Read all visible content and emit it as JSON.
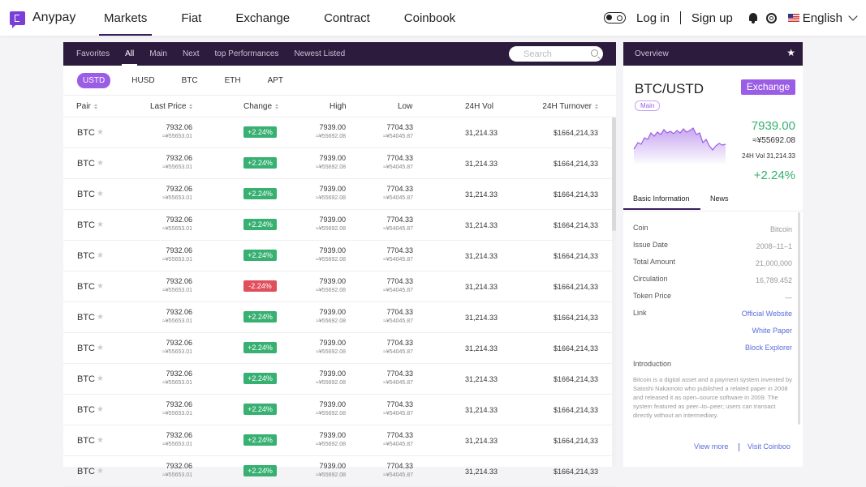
{
  "app": {
    "name": "Anypay",
    "brand_color": "#7b3fd9",
    "accent_color": "#9b5de5",
    "dark_bar_color": "#2d1b3d",
    "up_color": "#37b071",
    "down_color": "#e0505c"
  },
  "nav": {
    "items": [
      "Markets",
      "Fiat",
      "Exchange",
      "Contract",
      "Coinbook"
    ],
    "active": "Markets",
    "login": "Log in",
    "signup": "Sign up",
    "language": "English"
  },
  "market": {
    "tabs": [
      "Favorites",
      "All",
      "Main",
      "Next",
      "top Performances",
      "Newest Listed"
    ],
    "active_tab": "All",
    "search_placeholder": "Search",
    "quote_tabs": [
      "USTD",
      "HUSD",
      "BTC",
      "ETH",
      "APT"
    ],
    "active_quote": "USTD",
    "columns": [
      "Pair",
      "Last Price",
      "Change",
      "High",
      "Low",
      "24H Vol",
      "24H Turnover"
    ],
    "rows": [
      {
        "pair": "BTC",
        "last": "7932.06",
        "last_cny": "≈¥55653.01",
        "change": "+2.24%",
        "dir": "up",
        "high": "7939.00",
        "high_cny": "≈¥55692.08",
        "low": "7704.33",
        "low_cny": "≈¥54045.87",
        "vol": "31,214.33",
        "turnover": "$1664,214,33"
      },
      {
        "pair": "BTC",
        "last": "7932.06",
        "last_cny": "≈¥55653.01",
        "change": "+2.24%",
        "dir": "up",
        "high": "7939.00",
        "high_cny": "≈¥55692.08",
        "low": "7704.33",
        "low_cny": "≈¥54045.87",
        "vol": "31,214.33",
        "turnover": "$1664,214,33"
      },
      {
        "pair": "BTC",
        "last": "7932.06",
        "last_cny": "≈¥55653.01",
        "change": "+2.24%",
        "dir": "up",
        "high": "7939.00",
        "high_cny": "≈¥55692.08",
        "low": "7704.33",
        "low_cny": "≈¥54045.87",
        "vol": "31,214.33",
        "turnover": "$1664,214,33"
      },
      {
        "pair": "BTC",
        "last": "7932.06",
        "last_cny": "≈¥55653.01",
        "change": "+2.24%",
        "dir": "up",
        "high": "7939.00",
        "high_cny": "≈¥55692.08",
        "low": "7704.33",
        "low_cny": "≈¥54045.87",
        "vol": "31,214.33",
        "turnover": "$1664,214,33"
      },
      {
        "pair": "BTC",
        "last": "7932.06",
        "last_cny": "≈¥55653.01",
        "change": "+2.24%",
        "dir": "up",
        "high": "7939.00",
        "high_cny": "≈¥55692.08",
        "low": "7704.33",
        "low_cny": "≈¥54045.87",
        "vol": "31,214.33",
        "turnover": "$1664,214,33"
      },
      {
        "pair": "BTC",
        "last": "7932.06",
        "last_cny": "≈¥55653.01",
        "change": "-2.24%",
        "dir": "down",
        "high": "7939.00",
        "high_cny": "≈¥55692.08",
        "low": "7704.33",
        "low_cny": "≈¥54045.87",
        "vol": "31,214.33",
        "turnover": "$1664,214,33"
      },
      {
        "pair": "BTC",
        "last": "7932.06",
        "last_cny": "≈¥55653.01",
        "change": "+2.24%",
        "dir": "up",
        "high": "7939.00",
        "high_cny": "≈¥55692.08",
        "low": "7704.33",
        "low_cny": "≈¥54045.87",
        "vol": "31,214.33",
        "turnover": "$1664,214,33"
      },
      {
        "pair": "BTC",
        "last": "7932.06",
        "last_cny": "≈¥55653.01",
        "change": "+2.24%",
        "dir": "up",
        "high": "7939.00",
        "high_cny": "≈¥55692.08",
        "low": "7704.33",
        "low_cny": "≈¥54045.87",
        "vol": "31,214.33",
        "turnover": "$1664,214,33"
      },
      {
        "pair": "BTC",
        "last": "7932.06",
        "last_cny": "≈¥55653.01",
        "change": "+2.24%",
        "dir": "up",
        "high": "7939.00",
        "high_cny": "≈¥55692.08",
        "low": "7704.33",
        "low_cny": "≈¥54045.87",
        "vol": "31,214.33",
        "turnover": "$1664,214,33"
      },
      {
        "pair": "BTC",
        "last": "7932.06",
        "last_cny": "≈¥55653.01",
        "change": "+2.24%",
        "dir": "up",
        "high": "7939.00",
        "high_cny": "≈¥55692.08",
        "low": "7704.33",
        "low_cny": "≈¥54045.87",
        "vol": "31,214.33",
        "turnover": "$1664,214,33"
      },
      {
        "pair": "BTC",
        "last": "7932.06",
        "last_cny": "≈¥55653.01",
        "change": "+2.24%",
        "dir": "up",
        "high": "7939.00",
        "high_cny": "≈¥55692.08",
        "low": "7704.33",
        "low_cny": "≈¥54045.87",
        "vol": "31,214.33",
        "turnover": "$1664,214,33"
      },
      {
        "pair": "BTC",
        "last": "7932.06",
        "last_cny": "≈¥55653.01",
        "change": "+2.24%",
        "dir": "up",
        "high": "7939.00",
        "high_cny": "≈¥55692.08",
        "low": "7704.33",
        "low_cny": "≈¥54045.87",
        "vol": "31,214.33",
        "turnover": "$1664,214,33"
      }
    ]
  },
  "overview": {
    "title": "Overview",
    "pair": "BTC/USTD",
    "exchange_button": "Exchange",
    "tag": "Main",
    "price": "7939.00",
    "price_cny": "≈¥55692.08",
    "vol": "24H Vol 31,214.33",
    "change": "+2.24%",
    "tabs": [
      "Basic Information",
      "News"
    ],
    "info": [
      {
        "k": "Coin",
        "v": "Bitcoin"
      },
      {
        "k": "Issue Date",
        "v": "2008–11–1"
      },
      {
        "k": "Total Amount",
        "v": "21,000,000"
      },
      {
        "k": "Circulation",
        "v": "16,789.452"
      },
      {
        "k": "Token Price",
        "v": "—"
      }
    ],
    "link_label": "Link",
    "links": [
      "Official Website",
      "White Paper",
      "Block Explorer"
    ],
    "intro_heading": "Introduction",
    "intro_text": "Bitcoin is a digital asset and a payment system invented by Satoshi Nakamoto who published a related paper in 2008 and released it as open–source software in 2009. The system featured as peer–to–peer; users can transact directly without an intermediary.",
    "view_more": "View more",
    "visit": "Visit Coinboo"
  }
}
